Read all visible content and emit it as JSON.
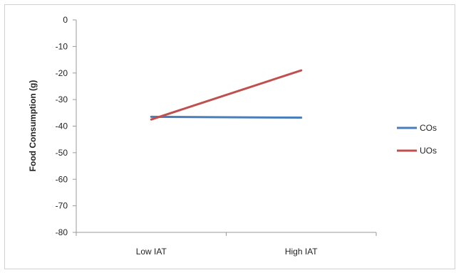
{
  "chart_data": {
    "type": "line",
    "title": "",
    "xlabel": "",
    "ylabel": "Food Consumption (g)",
    "categories": [
      "Low IAT",
      "High IAT"
    ],
    "ylim": [
      -80,
      0
    ],
    "yticks": [
      0,
      -10,
      -20,
      -30,
      -40,
      -50,
      -60,
      -70,
      -80
    ],
    "ytick_labels": [
      "0",
      "-10",
      "-20",
      "-30",
      "-40",
      "-50",
      "-60",
      "-70",
      "-80"
    ],
    "grid": false,
    "legend_position": "right",
    "series": [
      {
        "name": "COs",
        "values": [
          -36.5,
          -36.8
        ],
        "color": "#4a7ebb"
      },
      {
        "name": "UOs",
        "values": [
          -37.5,
          -19
        ],
        "color": "#c0504d"
      }
    ]
  }
}
